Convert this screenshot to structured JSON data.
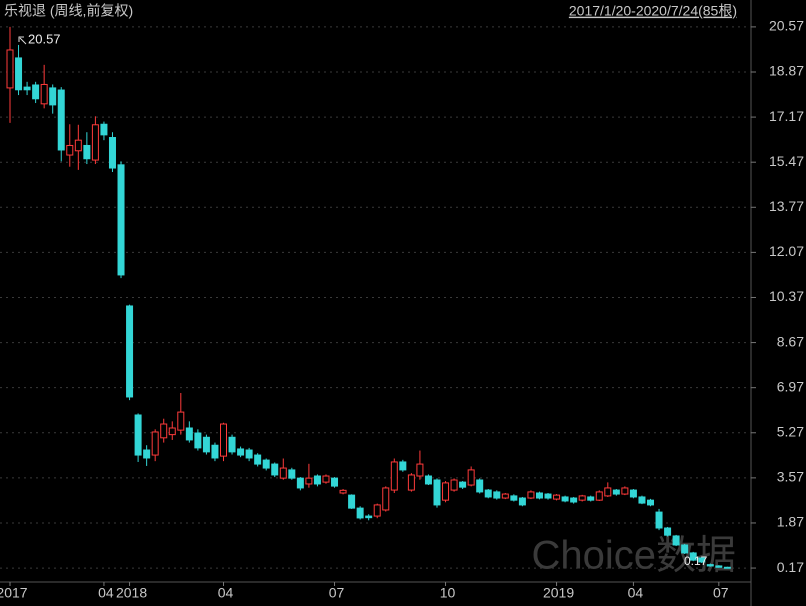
{
  "chart_data": {
    "type": "candlestick",
    "title": "乐视退 (周线,前复权)",
    "subtitle": "2017/1/20-2020/7/24(85根)",
    "watermark": "Choice数据",
    "annotations": [
      "20.57",
      "0.17"
    ],
    "up_color": "#ff3b3b",
    "down_color": "#33d6d6",
    "grid": true,
    "categories": [
      "2017",
      null,
      null,
      null,
      null,
      null,
      null,
      null,
      null,
      null,
      null,
      "04",
      null,
      null,
      "2018",
      null,
      null,
      null,
      null,
      null,
      null,
      null,
      null,
      null,
      null,
      "04",
      null,
      null,
      null,
      null,
      null,
      null,
      null,
      null,
      null,
      null,
      null,
      null,
      "07",
      null,
      null,
      null,
      null,
      null,
      null,
      null,
      null,
      null,
      null,
      null,
      null,
      "10",
      null,
      null,
      null,
      null,
      null,
      null,
      null,
      null,
      null,
      null,
      null,
      null,
      "2019",
      null,
      null,
      null,
      null,
      null,
      null,
      null,
      null,
      "04",
      null,
      null,
      null,
      null,
      null,
      null,
      null,
      null,
      null,
      "07",
      null
    ],
    "open": [
      18.27,
      19.4,
      18.3,
      18.38,
      17.67,
      18.27,
      18.19,
      15.74,
      15.9,
      16.1,
      15.55,
      16.9,
      16.4,
      15.37,
      10.05,
      5.94,
      4.62,
      4.43,
      5.08,
      5.2,
      5.37,
      5.45,
      5.26,
      5.1,
      4.8,
      4.39,
      5.1,
      4.66,
      4.62,
      4.43,
      4.24,
      4.09,
      3.56,
      3.87,
      3.56,
      3.34,
      3.64,
      3.41,
      3.56,
      3.0,
      2.92,
      2.43,
      2.13,
      2.13,
      2.36,
      3.11,
      4.17,
      3.11,
      3.64,
      3.64,
      3.49,
      2.73,
      3.11,
      3.41,
      3.3,
      3.49,
      3.11,
      3.04,
      2.81,
      2.89,
      2.81,
      2.81,
      3.0,
      2.96,
      2.77,
      2.85,
      2.81,
      2.73,
      2.85,
      2.73,
      2.89,
      3.11,
      2.96,
      3.11,
      2.85,
      2.73,
      2.28,
      1.68,
      1.38,
      1.04,
      0.74,
      0.55,
      0.3,
      0.25,
      0.2
    ],
    "high": [
      20.57,
      19.89,
      18.5,
      18.5,
      19.14,
      18.4,
      18.3,
      16.9,
      16.88,
      16.6,
      17.2,
      17.0,
      16.6,
      15.5,
      10.1,
      6.0,
      4.8,
      5.4,
      5.8,
      5.7,
      6.77,
      5.7,
      5.4,
      5.2,
      4.9,
      5.65,
      5.2,
      4.75,
      4.7,
      4.5,
      4.3,
      4.15,
      4.3,
      3.95,
      3.6,
      4.1,
      3.7,
      3.7,
      3.6,
      3.15,
      2.95,
      2.5,
      2.2,
      2.6,
      3.25,
      4.3,
      4.25,
      3.75,
      4.6,
      3.7,
      3.55,
      3.45,
      3.55,
      3.45,
      4.0,
      3.55,
      3.15,
      3.1,
      3.0,
      2.95,
      2.85,
      3.1,
      3.05,
      3.0,
      2.96,
      2.9,
      2.85,
      2.93,
      2.9,
      3.1,
      3.4,
      3.15,
      3.25,
      3.15,
      2.9,
      2.78,
      2.4,
      1.72,
      1.42,
      1.08,
      0.78,
      0.6,
      0.34,
      0.28,
      0.22
    ],
    "low": [
      16.95,
      18.0,
      18.0,
      17.7,
      17.5,
      17.3,
      15.5,
      15.3,
      15.18,
      15.4,
      15.4,
      16.3,
      15.1,
      11.1,
      6.5,
      4.17,
      4.02,
      4.2,
      4.9,
      5.0,
      5.2,
      4.9,
      4.6,
      4.45,
      4.2,
      4.2,
      4.45,
      4.35,
      4.2,
      4.0,
      3.85,
      3.6,
      3.5,
      3.5,
      3.1,
      3.2,
      3.25,
      3.35,
      3.2,
      2.95,
      2.4,
      2.0,
      1.97,
      2.05,
      2.3,
      3.0,
      3.8,
      3.05,
      3.5,
      3.3,
      2.45,
      2.65,
      3.05,
      3.15,
      3.25,
      2.98,
      2.8,
      2.75,
      2.77,
      2.68,
      2.5,
      2.77,
      2.76,
      2.75,
      2.72,
      2.65,
      2.6,
      2.68,
      2.68,
      2.7,
      2.85,
      2.9,
      2.92,
      2.8,
      2.58,
      2.5,
      1.6,
      1.36,
      1.0,
      0.7,
      0.43,
      0.36,
      0.22,
      0.18,
      0.17
    ],
    "close": [
      19.7,
      18.2,
      18.2,
      17.86,
      18.4,
      17.63,
      15.93,
      16.1,
      16.3,
      15.6,
      16.88,
      16.5,
      15.25,
      11.22,
      6.62,
      4.43,
      4.32,
      5.3,
      5.6,
      5.45,
      6.05,
      5.0,
      4.7,
      4.55,
      4.32,
      5.6,
      4.55,
      4.43,
      4.32,
      4.09,
      3.94,
      3.68,
      3.94,
      3.56,
      3.19,
      3.56,
      3.34,
      3.64,
      3.26,
      3.1,
      2.43,
      2.06,
      2.07,
      2.55,
      3.19,
      4.17,
      3.87,
      3.68,
      4.09,
      3.34,
      2.55,
      3.38,
      3.49,
      3.22,
      3.87,
      3.04,
      2.85,
      2.81,
      2.96,
      2.73,
      2.55,
      3.04,
      2.81,
      2.81,
      2.92,
      2.7,
      2.66,
      2.89,
      2.73,
      3.04,
      3.19,
      2.96,
      3.19,
      2.85,
      2.62,
      2.55,
      1.68,
      1.41,
      1.04,
      0.74,
      0.47,
      0.4,
      0.25,
      0.2,
      0.17
    ],
    "ylim": [
      -0.28,
      20.83
    ],
    "yticks": [
      20.57,
      18.87,
      17.17,
      15.47,
      13.77,
      12.07,
      10.37,
      8.67,
      6.97,
      5.27,
      3.57,
      1.87,
      0.17
    ]
  }
}
